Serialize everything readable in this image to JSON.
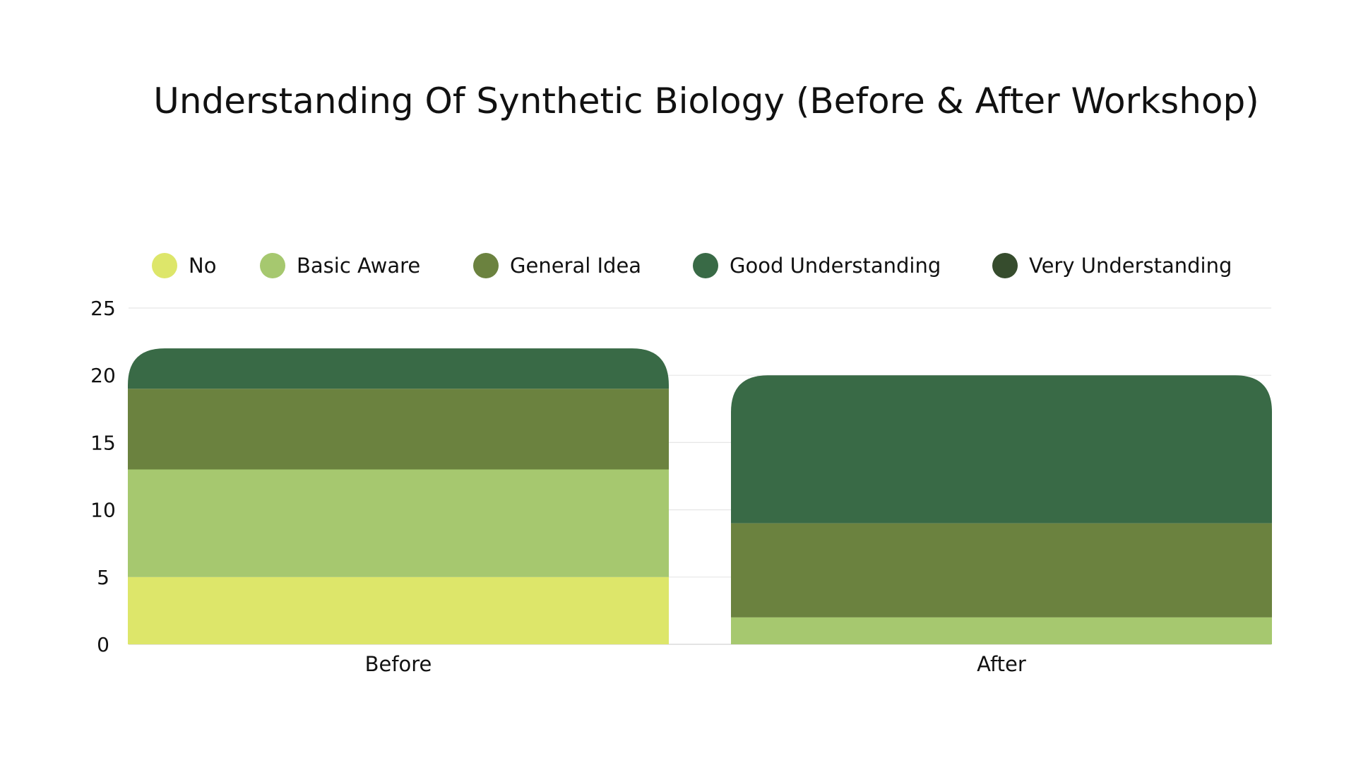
{
  "chart_data": {
    "type": "bar",
    "stacked": true,
    "title": "Understanding Of Synthetic Biology (Before & After Workshop)",
    "xlabel": "",
    "ylabel": "",
    "categories": [
      "Before",
      "After"
    ],
    "series": [
      {
        "name": "No",
        "color": "#dde66a",
        "values": [
          5,
          0
        ]
      },
      {
        "name": "Basic Aware",
        "color": "#a6c86f",
        "values": [
          8,
          2
        ]
      },
      {
        "name": "General Idea",
        "color": "#6b823f",
        "values": [
          6,
          7
        ]
      },
      {
        "name": "Good Understanding",
        "color": "#396a46",
        "values": [
          3,
          11
        ]
      },
      {
        "name": "Very Understanding",
        "color": "#364c2d",
        "values": [
          0,
          0
        ]
      }
    ],
    "ylim": [
      0,
      25
    ],
    "yticks": [
      0,
      5,
      10,
      15,
      20,
      25
    ],
    "grid": true,
    "legend_position": "top"
  }
}
